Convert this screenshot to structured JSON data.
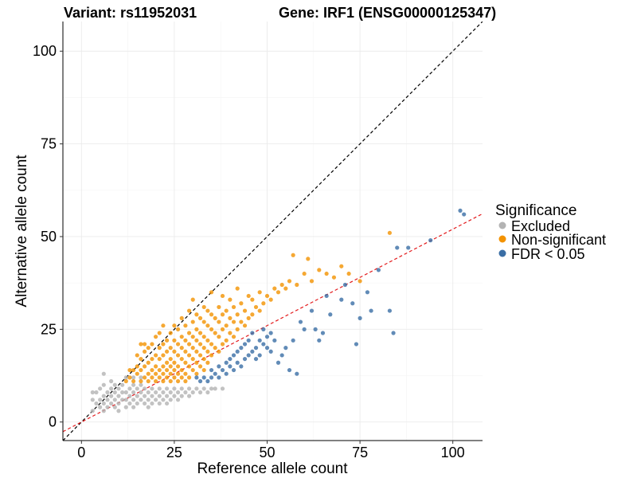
{
  "chart_data": {
    "type": "scatter",
    "title_left": "Variant: rs11952031",
    "title_right": "Gene: IRF1 (ENSG00000125347)",
    "xlabel": "Reference allele count",
    "ylabel": "Alternative allele count",
    "xlim": [
      -5,
      108
    ],
    "ylim": [
      -5,
      108
    ],
    "xticks": [
      0,
      25,
      50,
      75,
      100
    ],
    "yticks": [
      0,
      25,
      50,
      75,
      100
    ],
    "legend": {
      "title": "Significance",
      "position": "right",
      "entries": [
        {
          "label": "Excluded",
          "color": "#b3b3b3"
        },
        {
          "label": "Non-significant",
          "color": "#f39200"
        },
        {
          "label": "FDR < 0.05",
          "color": "#3a6ea5"
        }
      ]
    },
    "reference_lines": [
      {
        "name": "identity",
        "slope": 1,
        "intercept": 0,
        "color": "#000000",
        "dash": "dashed"
      },
      {
        "name": "fit",
        "slope": 0.52,
        "intercept": 0,
        "color": "#e31a1c",
        "dash": "dashed"
      }
    ],
    "series": [
      {
        "name": "Excluded",
        "color": "#b3b3b3",
        "points": [
          [
            3,
            3
          ],
          [
            3,
            6
          ],
          [
            3,
            8
          ],
          [
            4,
            5
          ],
          [
            4,
            8
          ],
          [
            5,
            4
          ],
          [
            5,
            6
          ],
          [
            5,
            9
          ],
          [
            6,
            3
          ],
          [
            6,
            5
          ],
          [
            6,
            7
          ],
          [
            6,
            10
          ],
          [
            6,
            13
          ],
          [
            7,
            4
          ],
          [
            7,
            6
          ],
          [
            7,
            8
          ],
          [
            8,
            5
          ],
          [
            8,
            7
          ],
          [
            8,
            9
          ],
          [
            8,
            11
          ],
          [
            9,
            4
          ],
          [
            9,
            6
          ],
          [
            9,
            8
          ],
          [
            9,
            10
          ],
          [
            10,
            3
          ],
          [
            10,
            5
          ],
          [
            10,
            7
          ],
          [
            10,
            9
          ],
          [
            11,
            6
          ],
          [
            11,
            8
          ],
          [
            11,
            10
          ],
          [
            12,
            4
          ],
          [
            12,
            6
          ],
          [
            12,
            8
          ],
          [
            12,
            12
          ],
          [
            13,
            5
          ],
          [
            13,
            7
          ],
          [
            13,
            9
          ],
          [
            14,
            4
          ],
          [
            14,
            6
          ],
          [
            14,
            8
          ],
          [
            14,
            10
          ],
          [
            15,
            5
          ],
          [
            15,
            7
          ],
          [
            15,
            9
          ],
          [
            16,
            6
          ],
          [
            16,
            8
          ],
          [
            16,
            10
          ],
          [
            17,
            5
          ],
          [
            17,
            7
          ],
          [
            17,
            9
          ],
          [
            18,
            4
          ],
          [
            18,
            6
          ],
          [
            18,
            8
          ],
          [
            19,
            5
          ],
          [
            19,
            7
          ],
          [
            19,
            9
          ],
          [
            20,
            6
          ],
          [
            20,
            8
          ],
          [
            21,
            5
          ],
          [
            21,
            7
          ],
          [
            21,
            9
          ],
          [
            22,
            6
          ],
          [
            22,
            8
          ],
          [
            23,
            5
          ],
          [
            23,
            7
          ],
          [
            23,
            9
          ],
          [
            24,
            6
          ],
          [
            24,
            8
          ],
          [
            25,
            7
          ],
          [
            25,
            9
          ],
          [
            26,
            6
          ],
          [
            26,
            8
          ],
          [
            27,
            7
          ],
          [
            27,
            9
          ],
          [
            28,
            8
          ],
          [
            29,
            7
          ],
          [
            29,
            9
          ],
          [
            30,
            8
          ],
          [
            31,
            9
          ],
          [
            32,
            8
          ],
          [
            33,
            9
          ],
          [
            34,
            8
          ],
          [
            35,
            9
          ],
          [
            36,
            9
          ],
          [
            38,
            9
          ],
          [
            16,
            12
          ],
          [
            14,
            12
          ]
        ]
      },
      {
        "name": "Non-significant",
        "color": "#f39200",
        "points": [
          [
            12,
            11
          ],
          [
            13,
            12
          ],
          [
            13,
            14
          ],
          [
            14,
            11
          ],
          [
            14,
            14
          ],
          [
            15,
            13
          ],
          [
            15,
            15
          ],
          [
            15,
            18
          ],
          [
            16,
            11
          ],
          [
            16,
            14
          ],
          [
            16,
            17
          ],
          [
            16,
            21
          ],
          [
            17,
            12
          ],
          [
            17,
            15
          ],
          [
            17,
            19
          ],
          [
            17,
            21
          ],
          [
            18,
            11
          ],
          [
            18,
            13
          ],
          [
            18,
            16
          ],
          [
            18,
            20
          ],
          [
            19,
            12
          ],
          [
            19,
            14
          ],
          [
            19,
            17
          ],
          [
            19,
            21
          ],
          [
            20,
            11
          ],
          [
            20,
            13
          ],
          [
            20,
            15
          ],
          [
            20,
            18
          ],
          [
            20,
            23
          ],
          [
            21,
            12
          ],
          [
            21,
            14
          ],
          [
            21,
            17
          ],
          [
            21,
            20
          ],
          [
            21,
            24
          ],
          [
            22,
            11
          ],
          [
            22,
            13
          ],
          [
            22,
            15
          ],
          [
            22,
            18
          ],
          [
            22,
            21
          ],
          [
            22,
            26
          ],
          [
            23,
            12
          ],
          [
            23,
            14
          ],
          [
            23,
            16
          ],
          [
            23,
            19
          ],
          [
            23,
            22
          ],
          [
            24,
            11
          ],
          [
            24,
            13
          ],
          [
            24,
            15
          ],
          [
            24,
            17
          ],
          [
            24,
            20
          ],
          [
            24,
            24
          ],
          [
            25,
            12
          ],
          [
            25,
            14
          ],
          [
            25,
            16
          ],
          [
            25,
            19
          ],
          [
            25,
            22
          ],
          [
            25,
            26
          ],
          [
            26,
            11
          ],
          [
            26,
            13
          ],
          [
            26,
            15
          ],
          [
            26,
            18
          ],
          [
            26,
            21
          ],
          [
            26,
            25
          ],
          [
            27,
            12
          ],
          [
            27,
            14
          ],
          [
            27,
            17
          ],
          [
            27,
            20
          ],
          [
            27,
            23
          ],
          [
            27,
            28
          ],
          [
            28,
            11
          ],
          [
            28,
            13
          ],
          [
            28,
            16
          ],
          [
            28,
            19
          ],
          [
            28,
            22
          ],
          [
            28,
            26
          ],
          [
            29,
            12
          ],
          [
            29,
            15
          ],
          [
            29,
            18
          ],
          [
            29,
            21
          ],
          [
            29,
            24
          ],
          [
            29,
            30
          ],
          [
            30,
            14
          ],
          [
            30,
            17
          ],
          [
            30,
            20
          ],
          [
            30,
            23
          ],
          [
            30,
            27
          ],
          [
            30,
            33
          ],
          [
            31,
            13
          ],
          [
            31,
            16
          ],
          [
            31,
            19
          ],
          [
            31,
            22
          ],
          [
            31,
            25
          ],
          [
            31,
            29
          ],
          [
            32,
            15
          ],
          [
            32,
            18
          ],
          [
            32,
            21
          ],
          [
            32,
            24
          ],
          [
            32,
            28
          ],
          [
            33,
            14
          ],
          [
            33,
            17
          ],
          [
            33,
            20
          ],
          [
            33,
            23
          ],
          [
            33,
            27
          ],
          [
            33,
            31
          ],
          [
            34,
            16
          ],
          [
            34,
            19
          ],
          [
            34,
            22
          ],
          [
            34,
            26
          ],
          [
            34,
            30
          ],
          [
            35,
            18
          ],
          [
            35,
            21
          ],
          [
            35,
            25
          ],
          [
            35,
            29
          ],
          [
            35,
            35
          ],
          [
            36,
            20
          ],
          [
            36,
            24
          ],
          [
            36,
            28
          ],
          [
            37,
            19
          ],
          [
            37,
            23
          ],
          [
            37,
            27
          ],
          [
            37,
            31
          ],
          [
            38,
            21
          ],
          [
            38,
            25
          ],
          [
            38,
            29
          ],
          [
            38,
            34
          ],
          [
            39,
            22
          ],
          [
            39,
            26
          ],
          [
            39,
            30
          ],
          [
            40,
            24
          ],
          [
            40,
            28
          ],
          [
            40,
            33
          ],
          [
            41,
            23
          ],
          [
            41,
            27
          ],
          [
            41,
            31
          ],
          [
            42,
            25
          ],
          [
            42,
            29
          ],
          [
            42,
            36
          ],
          [
            43,
            27
          ],
          [
            43,
            32
          ],
          [
            44,
            26
          ],
          [
            44,
            30
          ],
          [
            45,
            28
          ],
          [
            45,
            34
          ],
          [
            46,
            29
          ],
          [
            46,
            33
          ],
          [
            47,
            31
          ],
          [
            48,
            30
          ],
          [
            48,
            35
          ],
          [
            49,
            32
          ],
          [
            50,
            34
          ],
          [
            51,
            33
          ],
          [
            52,
            36
          ],
          [
            53,
            35
          ],
          [
            54,
            37
          ],
          [
            55,
            36
          ],
          [
            56,
            38
          ],
          [
            57,
            45
          ],
          [
            58,
            37
          ],
          [
            60,
            40
          ],
          [
            61,
            44
          ],
          [
            62,
            38
          ],
          [
            64,
            41
          ],
          [
            66,
            40
          ],
          [
            68,
            39
          ],
          [
            70,
            42
          ],
          [
            72,
            40
          ],
          [
            75,
            38
          ],
          [
            83,
            51
          ]
        ]
      },
      {
        "name": "FDR < 0.05",
        "color": "#3a6ea5",
        "points": [
          [
            31,
            12
          ],
          [
            32,
            11
          ],
          [
            33,
            12
          ],
          [
            34,
            11
          ],
          [
            35,
            12
          ],
          [
            35,
            14
          ],
          [
            36,
            13
          ],
          [
            37,
            12
          ],
          [
            37,
            15
          ],
          [
            38,
            14
          ],
          [
            39,
            13
          ],
          [
            39,
            16
          ],
          [
            40,
            15
          ],
          [
            40,
            17
          ],
          [
            41,
            14
          ],
          [
            41,
            18
          ],
          [
            42,
            16
          ],
          [
            42,
            19
          ],
          [
            43,
            15
          ],
          [
            43,
            20
          ],
          [
            44,
            17
          ],
          [
            44,
            21
          ],
          [
            45,
            18
          ],
          [
            45,
            22
          ],
          [
            46,
            19
          ],
          [
            46,
            24
          ],
          [
            47,
            20
          ],
          [
            47,
            17
          ],
          [
            48,
            22
          ],
          [
            48,
            18
          ],
          [
            49,
            21
          ],
          [
            49,
            25
          ],
          [
            50,
            23
          ],
          [
            50,
            20
          ],
          [
            51,
            24
          ],
          [
            51,
            19
          ],
          [
            52,
            22
          ],
          [
            53,
            16
          ],
          [
            54,
            18
          ],
          [
            55,
            20
          ],
          [
            56,
            14
          ],
          [
            57,
            22
          ],
          [
            58,
            13
          ],
          [
            59,
            27
          ],
          [
            60,
            25
          ],
          [
            62,
            30
          ],
          [
            63,
            25
          ],
          [
            64,
            22
          ],
          [
            65,
            24
          ],
          [
            66,
            34
          ],
          [
            67,
            29
          ],
          [
            70,
            33
          ],
          [
            71,
            37
          ],
          [
            73,
            32
          ],
          [
            74,
            21
          ],
          [
            75,
            28
          ],
          [
            77,
            35
          ],
          [
            78,
            30
          ],
          [
            80,
            41
          ],
          [
            83,
            30
          ],
          [
            84,
            24
          ],
          [
            85,
            47
          ],
          [
            88,
            47
          ],
          [
            94,
            49
          ],
          [
            102,
            57
          ],
          [
            103,
            56
          ]
        ]
      }
    ]
  }
}
